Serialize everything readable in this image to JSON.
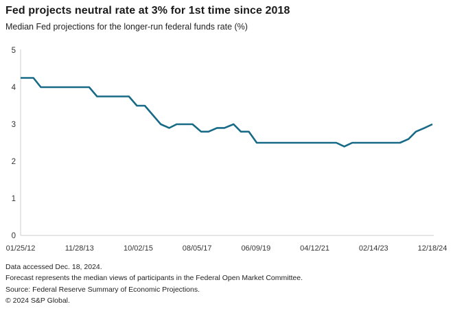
{
  "header": {
    "title": "Fed projects neutral rate at 3% for 1st time since 2018",
    "subtitle": "Median Fed projections for the longer-run federal funds rate (%)"
  },
  "footer": {
    "lines": [
      "Data accessed Dec. 18, 2024.",
      "Forecast represents the median views of participants in the Federal Open Market Committee.",
      "Source: Federal Reserve Summary of Economic Projections.",
      "© 2024 S&P Global."
    ]
  },
  "colors": {
    "line": "#176a85",
    "axis": "#cccccc",
    "title_text": "#1a1a1a",
    "tick_text": "#333333"
  },
  "chart_data": {
    "type": "line",
    "title": "Fed projects neutral rate at 3% for 1st time since 2018",
    "subtitle": "Median Fed projections for the longer-run federal funds rate (%)",
    "xlabel": "",
    "ylabel": "",
    "ylim": [
      0,
      5
    ],
    "yticks": [
      0,
      1,
      2,
      3,
      4,
      5
    ],
    "grid": false,
    "legend": "none",
    "xtick_labels": [
      "01/25/12",
      "11/28/13",
      "10/02/15",
      "08/05/17",
      "06/09/19",
      "04/12/21",
      "02/14/23",
      "12/18/24"
    ],
    "x": [
      "01/25/12",
      "04/25/12",
      "06/20/12",
      "09/13/12",
      "12/12/12",
      "03/20/13",
      "06/19/13",
      "09/18/13",
      "12/18/13",
      "03/19/14",
      "06/18/14",
      "09/17/14",
      "12/17/14",
      "03/18/15",
      "06/17/15",
      "09/17/15",
      "12/16/15",
      "03/16/16",
      "06/15/16",
      "09/21/16",
      "12/14/16",
      "03/15/17",
      "06/14/17",
      "09/20/17",
      "12/13/17",
      "03/21/18",
      "06/13/18",
      "09/26/18",
      "12/19/18",
      "03/20/19",
      "06/19/19",
      "09/18/19",
      "12/11/19",
      "06/10/20",
      "09/16/20",
      "12/16/20",
      "03/17/21",
      "06/16/21",
      "09/22/21",
      "12/15/21",
      "03/16/22",
      "06/15/22",
      "09/21/22",
      "12/14/22",
      "03/22/23",
      "06/14/23",
      "09/20/23",
      "12/13/23",
      "03/20/24",
      "06/12/24",
      "09/18/24",
      "12/18/24"
    ],
    "values": [
      4.25,
      4.25,
      4.25,
      4.0,
      4.0,
      4.0,
      4.0,
      4.0,
      4.0,
      4.0,
      3.75,
      3.75,
      3.75,
      3.75,
      3.75,
      3.5,
      3.5,
      3.25,
      3.0,
      2.9,
      3.0,
      3.0,
      3.0,
      2.8,
      2.8,
      2.9,
      2.9,
      3.0,
      2.8,
      2.8,
      2.5,
      2.5,
      2.5,
      2.5,
      2.5,
      2.5,
      2.5,
      2.5,
      2.5,
      2.5,
      2.4,
      2.5,
      2.5,
      2.5,
      2.5,
      2.5,
      2.5,
      2.5,
      2.6,
      2.8,
      2.9,
      3.0
    ]
  }
}
